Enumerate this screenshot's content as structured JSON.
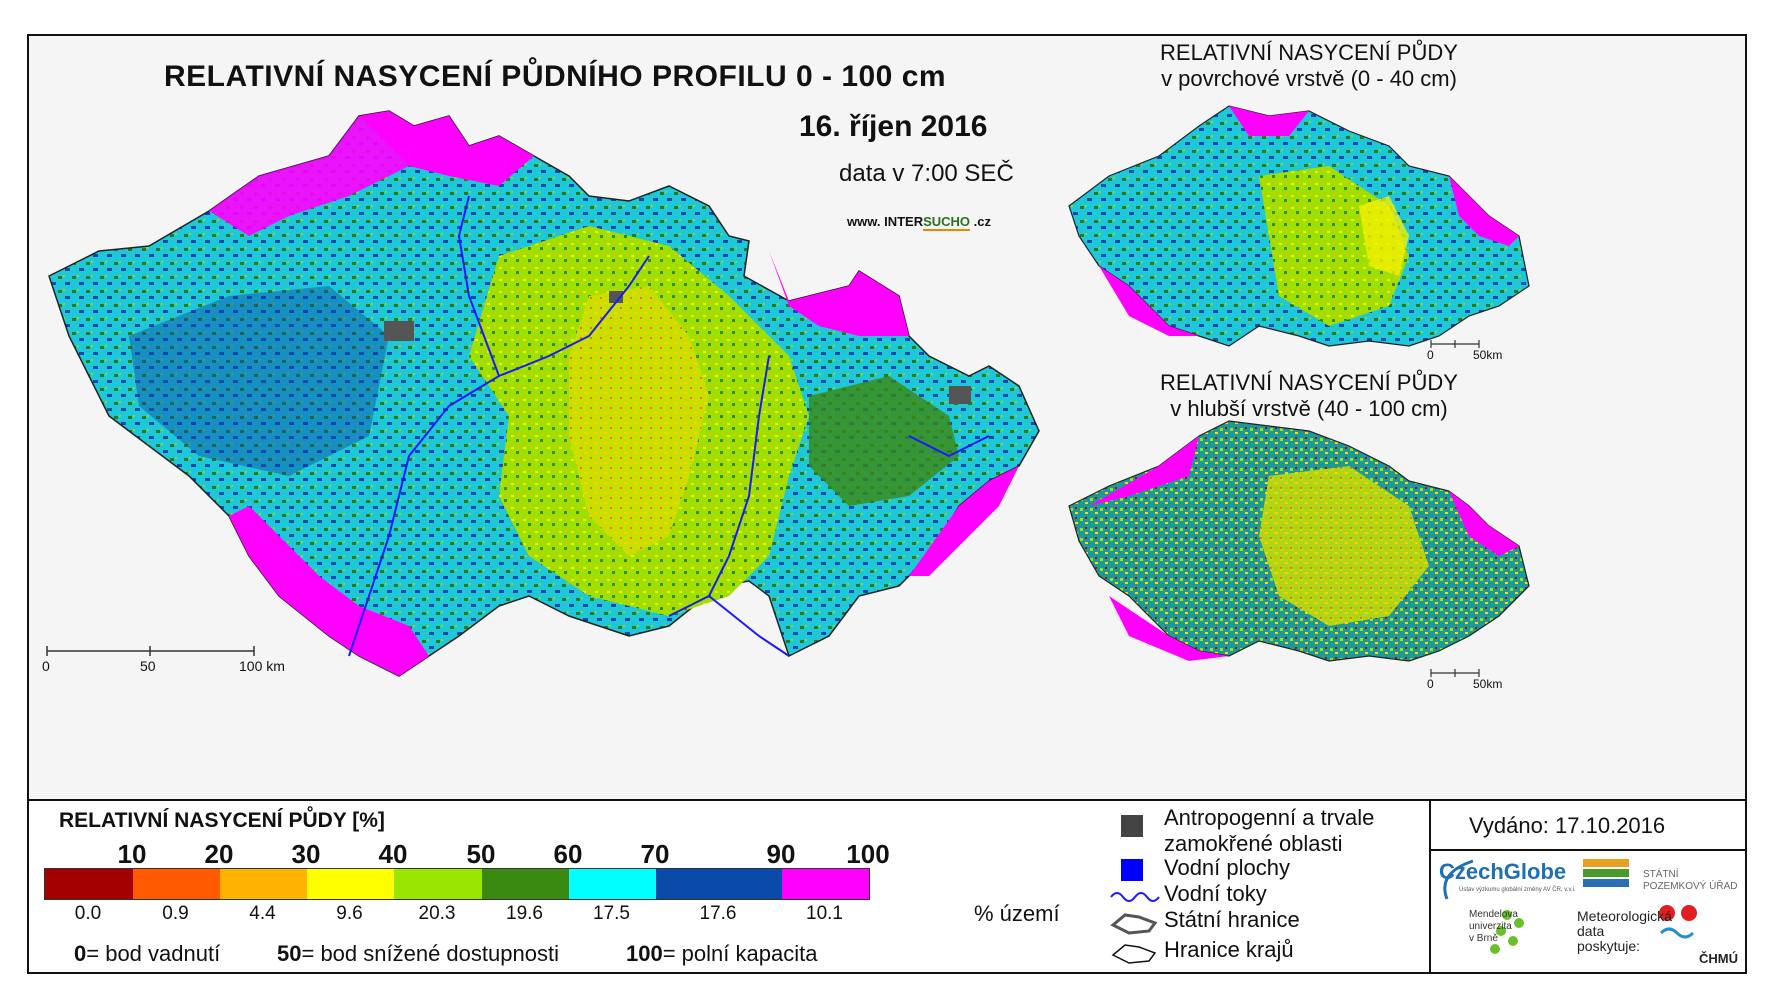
{
  "main_map": {
    "title": "RELATIVNÍ NASYCENÍ PŮDNÍHO PROFILU 0 - 100 cm",
    "date": "16. říjen 2016",
    "time_note": "data v 7:00 SEČ",
    "website_prefix": "www. INTER",
    "website_highlight": "SUCHO",
    "website_suffix": " .cz",
    "scale_labels": [
      "0",
      "50",
      "100 km"
    ]
  },
  "inset_top": {
    "title_line1": "RELATIVNÍ NASYCENÍ PŮDY",
    "title_line2": "v povrchové vrstvě (0 - 40 cm)",
    "scale_labels": [
      "0",
      "50km"
    ]
  },
  "inset_bottom": {
    "title_line1": "RELATIVNÍ NASYCENÍ PŮDY",
    "title_line2": "v hlubší vrstvě (40 - 100 cm)",
    "scale_labels": [
      "0",
      "50km"
    ]
  },
  "legend": {
    "title": "RELATIVNÍ NASYCENÍ PŮDY [%]",
    "ticks": [
      "10",
      "20",
      "30",
      "40",
      "50",
      "60",
      "70",
      "90",
      "100"
    ],
    "classes": [
      {
        "color": "#a50000",
        "percent": "0.0"
      },
      {
        "color": "#ff5a00",
        "percent": "0.9"
      },
      {
        "color": "#ffb300",
        "percent": "4.4"
      },
      {
        "color": "#ffff00",
        "percent": "9.6"
      },
      {
        "color": "#9ae600",
        "percent": "20.3"
      },
      {
        "color": "#3a8a12",
        "percent": "19.6"
      },
      {
        "color": "#00ffff",
        "percent": "17.5"
      },
      {
        "color": "#0a4aa8",
        "percent": "17.6"
      },
      {
        "color": "#ff00ff",
        "percent": "10.1"
      }
    ],
    "percent_unit": "% území",
    "definitions": [
      {
        "value": "0",
        "text": "= bod vadnutí"
      },
      {
        "value": "50",
        "text": "= bod snížené dostupnosti"
      },
      {
        "value": "100",
        "text": "= polní kapacita"
      }
    ],
    "symbols": {
      "anthropogenic_line1": "Antropogenní a trvale",
      "anthropogenic_line2": "zamokřené oblasti",
      "water_bodies": "Vodní plochy",
      "rivers": "Vodní toky",
      "state_border": "Státní hranice",
      "region_border": "Hranice krajů"
    },
    "issued": "Vydáno: 17.10.2016"
  },
  "logos": {
    "czechglobe": "CzechGlobe",
    "czechglobe_sub": "Ústav výzkumu globální změny AV ČR, v.v.i.",
    "spu_line1": "STÁTNÍ",
    "spu_line2": "POZEMKOVÝ ÚŘAD",
    "mendel_line1": "Mendelova",
    "mendel_line2": "univerzita",
    "mendel_line3": "v Brně",
    "met_line1": "Meteorologická",
    "met_line2": "data",
    "met_line3": "poskytuje:",
    "chmu": "ČHMÚ"
  },
  "colors": {
    "anthropogenic": "#444444",
    "water": "#0000ff",
    "river": "#1a1aff"
  }
}
